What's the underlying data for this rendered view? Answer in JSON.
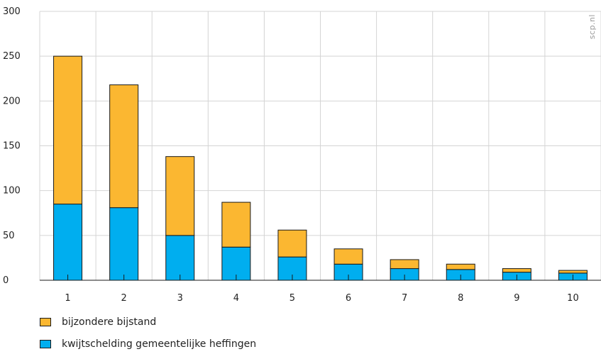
{
  "chart_data": {
    "type": "bar",
    "stacked": true,
    "categories": [
      "1",
      "2",
      "3",
      "4",
      "5",
      "6",
      "7",
      "8",
      "9",
      "10"
    ],
    "series": [
      {
        "name": "kwijtschelding gemeentelijke heffingen",
        "color": "#00AEEF",
        "values": [
          85,
          81,
          50,
          37,
          26,
          18,
          13,
          12,
          9,
          8
        ]
      },
      {
        "name": "bijzondere bijstand",
        "color": "#FBB731",
        "values": [
          165,
          137,
          88,
          50,
          30,
          17,
          10,
          6,
          4,
          3
        ]
      }
    ],
    "ylim": [
      0,
      300
    ],
    "yticks": [
      "0",
      "50",
      "100",
      "150",
      "200",
      "250",
      "300"
    ],
    "grid": true,
    "legend_position": "bottom-left",
    "title": "",
    "xlabel": "",
    "ylabel": ""
  },
  "legend": [
    {
      "label": "bijzondere bijstand",
      "color": "#FBB731"
    },
    {
      "label": "kwijtschelding gemeentelijke heffingen",
      "color": "#00AEEF"
    }
  ],
  "watermark": "scp.nl"
}
